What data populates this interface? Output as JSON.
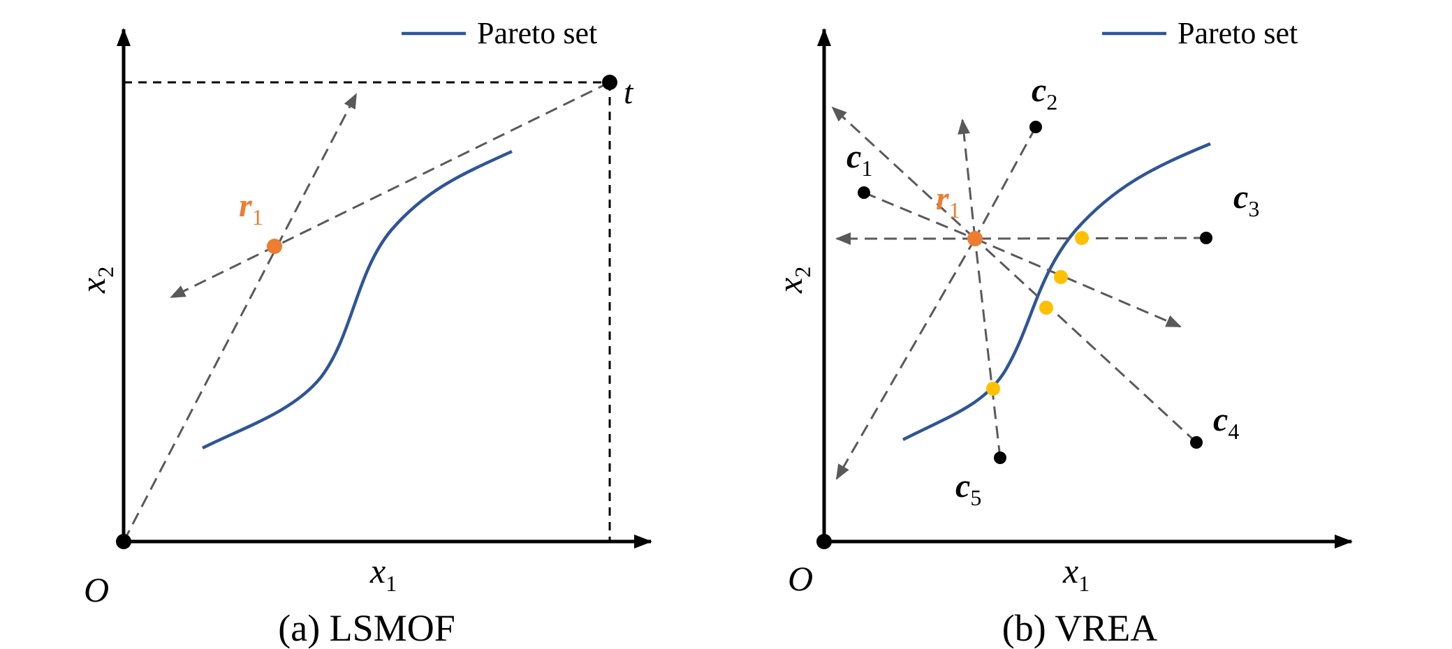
{
  "colors": {
    "axis": "#000000",
    "pareto": "#2f5597",
    "arrow": "#595959",
    "reference": "#ed7d31",
    "intersection": "#ffc000",
    "point": "#000000"
  },
  "legend": {
    "label": "Pareto set"
  },
  "panel_a": {
    "caption": "(a) LSMOF",
    "origin_label": "O",
    "x_axis": {
      "var": "x",
      "sub": "1"
    },
    "y_axis": {
      "var": "x",
      "sub": "2"
    },
    "target": {
      "label": "t"
    },
    "reference": {
      "var": "r",
      "sub": "1"
    }
  },
  "panel_b": {
    "caption": "(b) VREA",
    "origin_label": "O",
    "x_axis": {
      "var": "x",
      "sub": "1"
    },
    "y_axis": {
      "var": "x",
      "sub": "2"
    },
    "reference": {
      "var": "r",
      "sub": "1"
    },
    "points": [
      {
        "var": "c",
        "sub": "1"
      },
      {
        "var": "c",
        "sub": "2"
      },
      {
        "var": "c",
        "sub": "3"
      },
      {
        "var": "c",
        "sub": "4"
      },
      {
        "var": "c",
        "sub": "5"
      }
    ]
  }
}
